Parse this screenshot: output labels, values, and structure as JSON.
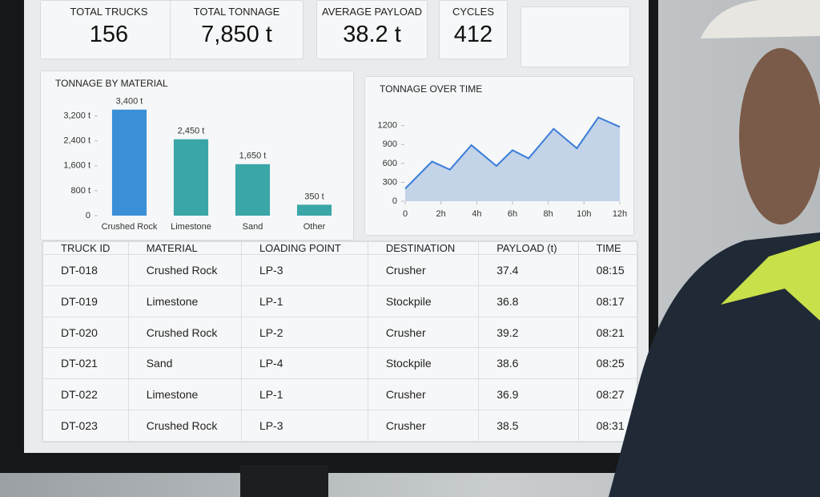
{
  "kpis": [
    {
      "label": "TOTAL TRUCKS",
      "value": "156"
    },
    {
      "label": "TOTAL TONNAGE",
      "value": "7,850 t"
    },
    {
      "label": "AVERAGE PAYLOAD",
      "value": "38.2 t"
    },
    {
      "label": "CYCLES",
      "value": "412"
    }
  ],
  "chart_data": [
    {
      "type": "bar",
      "title": "TONNAGE BY MATERIAL",
      "categories": [
        "Crushed Rock",
        "Limestone",
        "Sand",
        "Other"
      ],
      "values": [
        3400,
        2450,
        1650,
        350
      ],
      "value_labels": [
        "3,400 t",
        "2,450 t",
        "1,650 t",
        "350 t"
      ],
      "colors": [
        "#3a8fd6",
        "#3aa6a8",
        "#3aa6a8",
        "#3aa6a8"
      ],
      "ylim": [
        0,
        3600
      ],
      "yticks": [
        0,
        {
          "value": 800,
          "label": "800 t"
        },
        {
          "value": 1600,
          "label": "1,600 t"
        },
        {
          "value": 2400,
          "label": "2,400 t"
        },
        {
          "value": 3200,
          "label": "3,200 t"
        }
      ]
    },
    {
      "type": "line",
      "title": "TONNAGE OVER TIME",
      "x": [
        0,
        1.5,
        2.5,
        3.7,
        5.1,
        6,
        6.9,
        8.3,
        9.6,
        10.8,
        12
      ],
      "values": [
        200,
        630,
        500,
        890,
        560,
        810,
        680,
        1150,
        840,
        1330,
        1180
      ],
      "color": "#3b7dd8",
      "area_color": "#c3d3e8",
      "xlim": [
        0,
        12
      ],
      "xticks": [
        0,
        {
          "value": 2,
          "label": "2h"
        },
        {
          "value": 4,
          "label": "4h"
        },
        {
          "value": 6,
          "label": "6h"
        },
        {
          "value": 8,
          "label": "8h"
        },
        {
          "value": 10,
          "label": "10h"
        },
        {
          "value": 12,
          "label": "12h"
        }
      ],
      "ylim": [
        0,
        1400
      ],
      "yticks": [
        0,
        300,
        600,
        900,
        1200
      ]
    }
  ],
  "table": {
    "columns": [
      "TRUCK ID",
      "MATERIAL",
      "LOADING POINT",
      "DESTINATION",
      "PAYLOAD (t)",
      "TIME"
    ],
    "rows": [
      [
        "DT-018",
        "Crushed Rock",
        "LP-3",
        "Crusher",
        "37.4",
        "08:15"
      ],
      [
        "DT-019",
        "Limestone",
        "LP-1",
        "Stockpile",
        "36.8",
        "08:17"
      ],
      [
        "DT-020",
        "Crushed Rock",
        "LP-2",
        "Crusher",
        "39.2",
        "08:21"
      ],
      [
        "DT-021",
        "Sand",
        "LP-4",
        "Stockpile",
        "38.6",
        "08:25"
      ],
      [
        "DT-022",
        "Limestone",
        "LP-1",
        "Crusher",
        "36.9",
        "08:27"
      ],
      [
        "DT-023",
        "Crushed Rock",
        "LP-3",
        "Crusher",
        "38.5",
        "08:31"
      ]
    ]
  }
}
